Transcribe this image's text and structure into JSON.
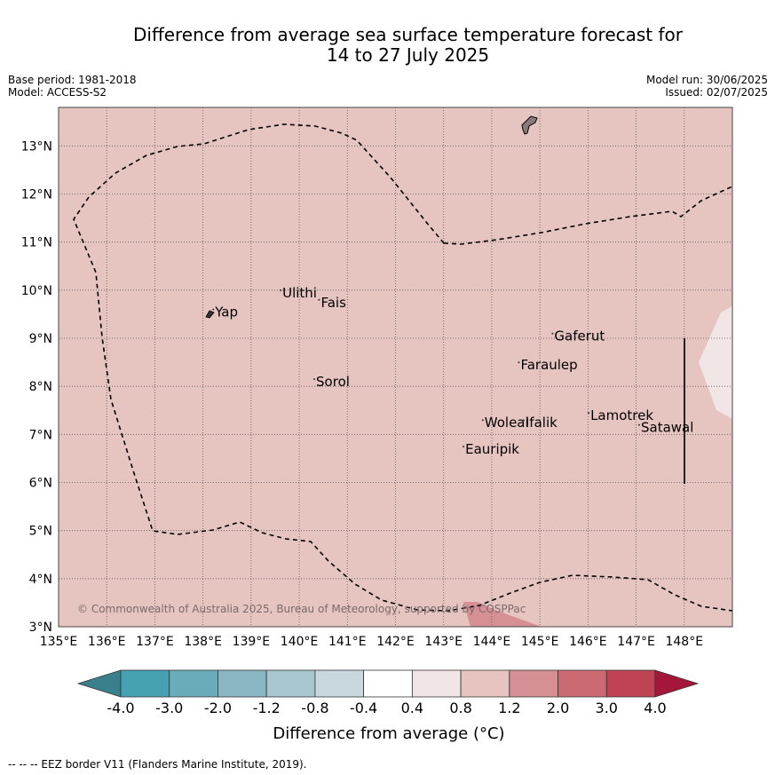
{
  "title_line1": "Difference from average sea surface temperature forecast for",
  "title_line2": "14 to 27 July 2025",
  "base_period": "Base period: 1981-2018",
  "model": "Model: ACCESS-S2",
  "model_run": "Model run: 30/06/2025",
  "issued": "Issued: 02/07/2025",
  "copyright": "© Commonwealth of Australia 2025, Bureau of Meteorology, supported by COSPPac",
  "footnote": "--  --  -- EEZ border V11 (Flanders Marine Institute, 2019).",
  "x_ticks": [
    "135°E",
    "136°E",
    "137°E",
    "138°E",
    "139°E",
    "140°E",
    "141°E",
    "142°E",
    "143°E",
    "144°E",
    "145°E",
    "146°E",
    "147°E",
    "148°E"
  ],
  "y_ticks": [
    "3°N",
    "4°N",
    "5°N",
    "6°N",
    "7°N",
    "8°N",
    "9°N",
    "10°N",
    "11°N",
    "12°N",
    "13°N"
  ],
  "places": [
    {
      "name": "Yap",
      "lon": 138.25,
      "lat": 9.45
    },
    {
      "name": "Ulithi",
      "lon": 139.65,
      "lat": 9.85
    },
    {
      "name": "Fais",
      "lon": 140.45,
      "lat": 9.65
    },
    {
      "name": "Gaferut",
      "lon": 145.3,
      "lat": 8.95
    },
    {
      "name": "Faraulep",
      "lon": 144.6,
      "lat": 8.35
    },
    {
      "name": "Sorol",
      "lon": 140.35,
      "lat": 8.0
    },
    {
      "name": "Woleai",
      "lon": 143.85,
      "lat": 7.15
    },
    {
      "name": "Ifalik",
      "lon": 144.7,
      "lat": 7.15
    },
    {
      "name": "Lamotrek",
      "lon": 146.05,
      "lat": 7.3
    },
    {
      "name": "Satawal",
      "lon": 147.1,
      "lat": 7.05
    },
    {
      "name": "Eauripik",
      "lon": 143.45,
      "lat": 6.6
    }
  ],
  "colorbar": {
    "labels": [
      "-4.0",
      "-3.0",
      "-2.0",
      "-1.2",
      "-0.8",
      "-0.4",
      "0.4",
      "0.8",
      "1.2",
      "2.0",
      "3.0",
      "4.0"
    ],
    "title": "Difference from average (°C)",
    "colors": {
      "below": "#3a7f8c",
      "bins": [
        "#45a0b2",
        "#69adbb",
        "#89b6c3",
        "#a8c6cd",
        "#c8d8dc",
        "#ffffff",
        "#f1e5e5",
        "#e7c4bf",
        "#d68f95",
        "#cb6a73",
        "#c04354"
      ],
      "above": "#a4173a"
    }
  },
  "map_colors": {
    "background": "#e6c5c1",
    "warm_patch": "#d68f95",
    "cool_patch": "#f1e5e5",
    "land": "#8a7a7a"
  }
}
